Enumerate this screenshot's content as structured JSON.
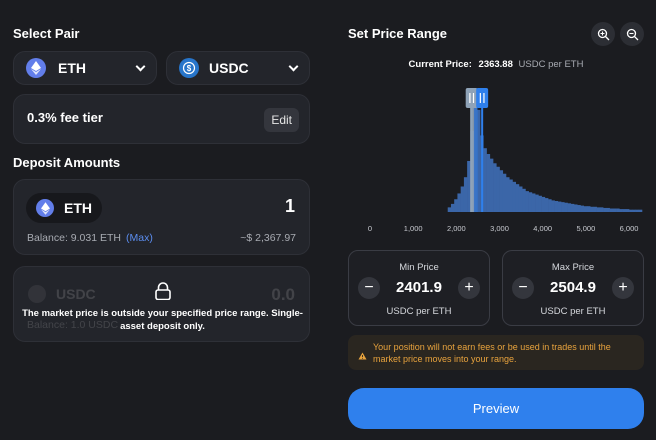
{
  "pair": {
    "title": "Select Pair",
    "token_a": "ETH",
    "token_b": "USDC",
    "fee_tier": "0.3% fee tier",
    "edit_label": "Edit"
  },
  "deposit": {
    "title": "Deposit Amounts",
    "eth": {
      "symbol": "ETH",
      "amount": "1",
      "balance": "Balance: 9.031 ETH",
      "max_label": "(Max)",
      "usd_value": "~$ 2,367.97"
    },
    "usdc": {
      "symbol": "USDC",
      "amount": "0.0",
      "balance": "Balance: 1.0 USDC",
      "locked_message": "The market price is outside your specified price range. Single-asset deposit only."
    }
  },
  "range": {
    "title": "Set Price Range",
    "current_price_label": "Current Price:",
    "current_price_value": "2363.88",
    "current_price_unit": "USDC per ETH",
    "min": {
      "label": "Min Price",
      "value": "2401.9",
      "unit": "USDC per ETH"
    },
    "max": {
      "label": "Max Price",
      "value": "2504.9",
      "unit": "USDC per ETH"
    },
    "minus": "−",
    "plus": "+",
    "warning": "Your position will not earn fees or be used in trades until the market price moves into your range.",
    "preview_label": "Preview"
  },
  "colors": {
    "accent": "#2f80ed",
    "bar": "#3b66a8",
    "warning": "#e8a33d"
  },
  "chart_data": {
    "type": "bar",
    "x_ticks": [
      "0",
      "1,000",
      "2,000",
      "3,000",
      "4,000",
      "5,000",
      "6,000"
    ],
    "xlim": [
      0,
      6300
    ],
    "bin_width": 75,
    "x": [
      1800,
      1875,
      1950,
      2025,
      2100,
      2175,
      2250,
      2325,
      2400,
      2475,
      2550,
      2625,
      2700,
      2775,
      2850,
      2925,
      3000,
      3075,
      3150,
      3225,
      3300,
      3375,
      3450,
      3525,
      3600,
      3675,
      3750,
      3825,
      3900,
      3975,
      4050,
      4125,
      4200,
      4275,
      4350,
      4425,
      4500,
      4575,
      4650,
      4725,
      4800,
      4875,
      4950,
      5025,
      5100,
      5175,
      5250,
      5325,
      5400,
      5475,
      5550,
      5625,
      5700,
      5775,
      5850,
      5925,
      6000,
      6075,
      6150,
      6225
    ],
    "values": [
      4,
      7,
      11,
      16,
      22,
      30,
      44,
      70,
      100,
      88,
      66,
      55,
      50,
      46,
      42,
      39,
      36,
      33,
      30,
      28,
      26,
      24,
      22,
      20,
      18,
      17,
      16,
      15,
      14,
      13,
      12,
      11,
      10,
      9.5,
      9,
      8.5,
      8,
      7.5,
      7,
      6.5,
      6,
      5.5,
      5,
      5,
      4.5,
      4.5,
      4,
      4,
      3.5,
      3.5,
      3,
      3,
      3,
      2.5,
      2.5,
      2.5,
      2,
      2,
      2,
      2
    ],
    "current_price": 2363.88,
    "range_min": 2401.9,
    "range_max": 2504.9
  }
}
